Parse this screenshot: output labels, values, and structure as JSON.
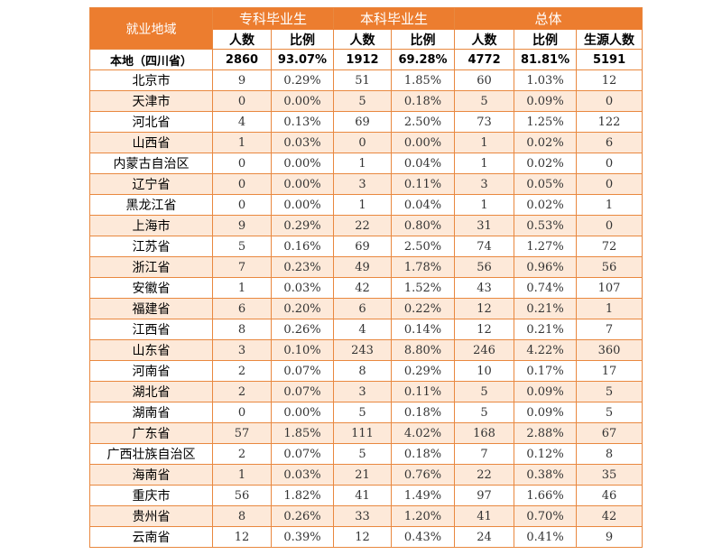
{
  "header": {
    "region": "就业地域",
    "groups": [
      "专科毕业生",
      "本科毕业生",
      "总体"
    ],
    "sub": [
      "人数",
      "比例",
      "人数",
      "比例",
      "人数",
      "比例",
      "生源人数"
    ]
  },
  "rows": [
    [
      "本地（四川省）",
      "2860",
      "93.07%",
      "1912",
      "69.28%",
      "4772",
      "81.81%",
      "5191"
    ],
    [
      "北京市",
      "9",
      "0.29%",
      "51",
      "1.85%",
      "60",
      "1.03%",
      "12"
    ],
    [
      "天津市",
      "0",
      "0.00%",
      "5",
      "0.18%",
      "5",
      "0.09%",
      "0"
    ],
    [
      "河北省",
      "4",
      "0.13%",
      "69",
      "2.50%",
      "73",
      "1.25%",
      "122"
    ],
    [
      "山西省",
      "1",
      "0.03%",
      "0",
      "0.00%",
      "1",
      "0.02%",
      "6"
    ],
    [
      "内蒙古自治区",
      "0",
      "0.00%",
      "1",
      "0.04%",
      "1",
      "0.02%",
      "0"
    ],
    [
      "辽宁省",
      "0",
      "0.00%",
      "3",
      "0.11%",
      "3",
      "0.05%",
      "0"
    ],
    [
      "黑龙江省",
      "0",
      "0.00%",
      "1",
      "0.04%",
      "1",
      "0.02%",
      "1"
    ],
    [
      "上海市",
      "9",
      "0.29%",
      "22",
      "0.80%",
      "31",
      "0.53%",
      "0"
    ],
    [
      "江苏省",
      "5",
      "0.16%",
      "69",
      "2.50%",
      "74",
      "1.27%",
      "72"
    ],
    [
      "浙江省",
      "7",
      "0.23%",
      "49",
      "1.78%",
      "56",
      "0.96%",
      "56"
    ],
    [
      "安徽省",
      "1",
      "0.03%",
      "42",
      "1.52%",
      "43",
      "0.74%",
      "107"
    ],
    [
      "福建省",
      "6",
      "0.20%",
      "6",
      "0.22%",
      "12",
      "0.21%",
      "1"
    ],
    [
      "江西省",
      "8",
      "0.26%",
      "4",
      "0.14%",
      "12",
      "0.21%",
      "7"
    ],
    [
      "山东省",
      "3",
      "0.10%",
      "243",
      "8.80%",
      "246",
      "4.22%",
      "360"
    ],
    [
      "河南省",
      "2",
      "0.07%",
      "8",
      "0.29%",
      "10",
      "0.17%",
      "17"
    ],
    [
      "湖北省",
      "2",
      "0.07%",
      "3",
      "0.11%",
      "5",
      "0.09%",
      "5"
    ],
    [
      "湖南省",
      "0",
      "0.00%",
      "5",
      "0.18%",
      "5",
      "0.09%",
      "5"
    ],
    [
      "广东省",
      "57",
      "1.85%",
      "111",
      "4.02%",
      "168",
      "2.88%",
      "67"
    ],
    [
      "广西壮族自治区",
      "2",
      "0.07%",
      "5",
      "0.18%",
      "7",
      "0.12%",
      "8"
    ],
    [
      "海南省",
      "1",
      "0.03%",
      "21",
      "0.76%",
      "22",
      "0.38%",
      "35"
    ],
    [
      "重庆市",
      "56",
      "1.82%",
      "41",
      "1.49%",
      "97",
      "1.66%",
      "46"
    ],
    [
      "贵州省",
      "8",
      "0.26%",
      "33",
      "1.20%",
      "41",
      "0.70%",
      "42"
    ],
    [
      "云南省",
      "12",
      "0.39%",
      "12",
      "0.43%",
      "24",
      "0.41%",
      "9"
    ]
  ]
}
